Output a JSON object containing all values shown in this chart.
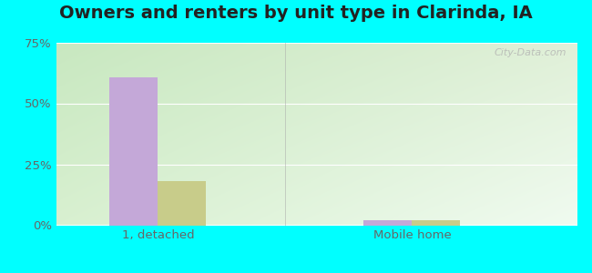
{
  "title": "Owners and renters by unit type in Clarinda, IA",
  "categories": [
    "1, detached",
    "Mobile home"
  ],
  "owner_values": [
    60.5,
    2.0
  ],
  "renter_values": [
    18.0,
    2.0
  ],
  "owner_color": "#c4a8d8",
  "renter_color": "#c8cc8a",
  "ylim": [
    0,
    75
  ],
  "yticks": [
    0,
    25,
    50,
    75
  ],
  "yticklabels": [
    "0%",
    "25%",
    "50%",
    "75%"
  ],
  "outer_bg": "#00ffff",
  "watermark": "City-Data.com",
  "bar_width": 0.38,
  "group_positions": [
    1.0,
    3.0
  ],
  "title_fontsize": 14,
  "tick_fontsize": 9.5,
  "legend_fontsize": 9.5,
  "bg_color_left": "#c8e8c0",
  "bg_color_right": "#e8f5e8",
  "bg_color_top": "#d0e8c8",
  "bg_color_bottom": "#f0faf0",
  "grid_color": "#ddddcc",
  "separator_color": "#aaaaaa"
}
